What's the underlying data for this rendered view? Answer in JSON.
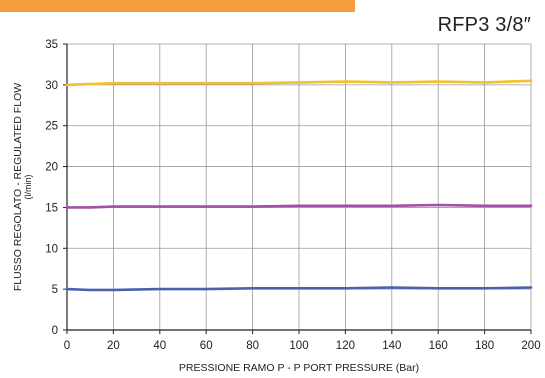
{
  "header": {
    "product_code": "RFP3 3/8″"
  },
  "colors": {
    "accent_bar": "#f59e3b",
    "series_30": "#f2c12e",
    "series_15": "#a24fa6",
    "series_5": "#4a62ad",
    "grid": "#9a9a9a",
    "axis": "#222222"
  },
  "chart_data": {
    "type": "line",
    "title": "",
    "xlabel": "PRESSIONE RAMO P - P PORT PRESSURE (Bar)",
    "ylabel": "FLUSSO REGOLATO - REGULATED FLOW",
    "ylabel_unit": "(l/min)",
    "xlim": [
      0,
      200
    ],
    "ylim": [
      0,
      35
    ],
    "x_ticks": [
      0,
      20,
      40,
      60,
      80,
      100,
      120,
      140,
      160,
      180,
      200
    ],
    "y_ticks": [
      0,
      5,
      10,
      15,
      20,
      25,
      30,
      35
    ],
    "grid": true,
    "legend": "none",
    "x": [
      0,
      10,
      20,
      40,
      60,
      80,
      100,
      120,
      140,
      160,
      180,
      200
    ],
    "series": [
      {
        "color": "#f2c12e",
        "values": [
          30.0,
          30.1,
          30.2,
          30.2,
          30.2,
          30.2,
          30.3,
          30.4,
          30.3,
          30.4,
          30.3,
          30.5
        ]
      },
      {
        "color": "#a24fa6",
        "values": [
          15.0,
          15.0,
          15.1,
          15.1,
          15.1,
          15.1,
          15.2,
          15.2,
          15.2,
          15.3,
          15.2,
          15.2
        ]
      },
      {
        "color": "#4a62ad",
        "values": [
          5.0,
          4.9,
          4.9,
          5.0,
          5.0,
          5.1,
          5.1,
          5.1,
          5.2,
          5.1,
          5.1,
          5.2
        ]
      }
    ]
  }
}
